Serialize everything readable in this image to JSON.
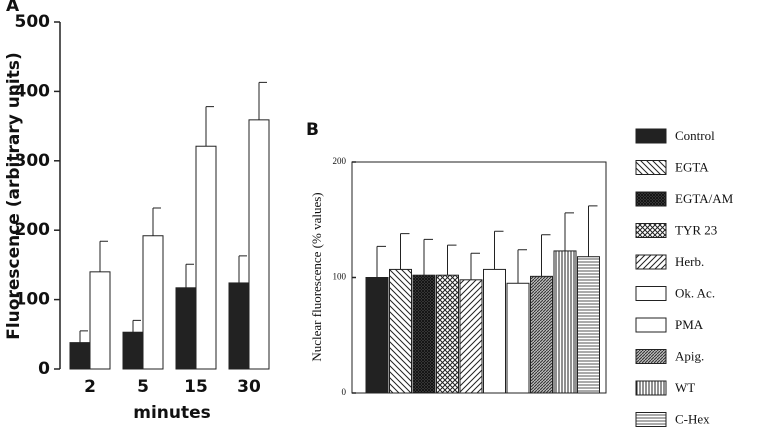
{
  "chart_data": [
    {
      "type": "bar",
      "label": "A",
      "xlabel": "minutes",
      "ylabel": "Fluorescence (arbitrary units)",
      "categories": [
        "2",
        "5",
        "15",
        "30"
      ],
      "series": [
        {
          "color": "#222222",
          "values": [
            38,
            53,
            117,
            124
          ],
          "errors": [
            17,
            17,
            34,
            39
          ]
        },
        {
          "color": "#ffffff",
          "values": [
            140,
            192,
            321,
            359
          ],
          "errors": [
            44,
            40,
            57,
            54
          ]
        }
      ],
      "ylim": [
        0,
        500
      ],
      "yticks": [
        0,
        100,
        200,
        300,
        400,
        500
      ]
    },
    {
      "type": "bar",
      "label": "B",
      "ylabel": "Nuclear fluorescence (% values)",
      "categories": [
        "Control",
        "EGTA",
        "EGTA/AM",
        "TYR 23",
        "Herb.",
        "Ok. Ac.",
        "PMA",
        "Apig.",
        "WT",
        "C-Hex"
      ],
      "values": [
        100,
        107,
        102,
        102,
        98,
        107,
        95,
        101,
        123,
        118
      ],
      "errors": [
        27,
        31,
        31,
        26,
        23,
        33,
        29,
        36,
        33,
        44
      ],
      "patterns": [
        "solid",
        "diag-down",
        "dense-cross",
        "cross",
        "diag-up",
        "none",
        "none",
        "dense-diag",
        "vertical",
        "horizontal"
      ],
      "ylim": [
        0,
        200
      ],
      "yticks": [
        0,
        100,
        200
      ],
      "legend": "right"
    }
  ]
}
